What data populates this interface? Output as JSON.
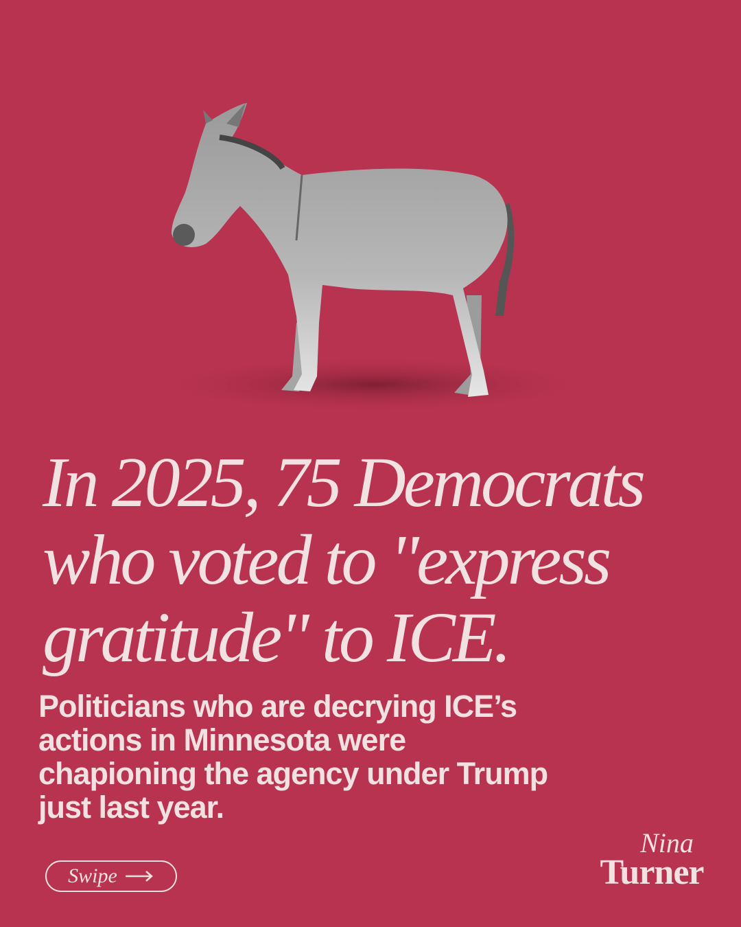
{
  "headline": {
    "lines": [
      "In 2025, 75 Democrats",
      "who voted to \"express",
      "gratitude\" to ICE."
    ]
  },
  "body": {
    "lines": [
      "Politicians who are decrying ICE’s",
      "actions in Minnesota were",
      "chapioning the agency under Trump",
      "just last year."
    ]
  },
  "button": {
    "label": "Swipe"
  },
  "logo": {
    "first": "Nina",
    "last": "Turner"
  }
}
